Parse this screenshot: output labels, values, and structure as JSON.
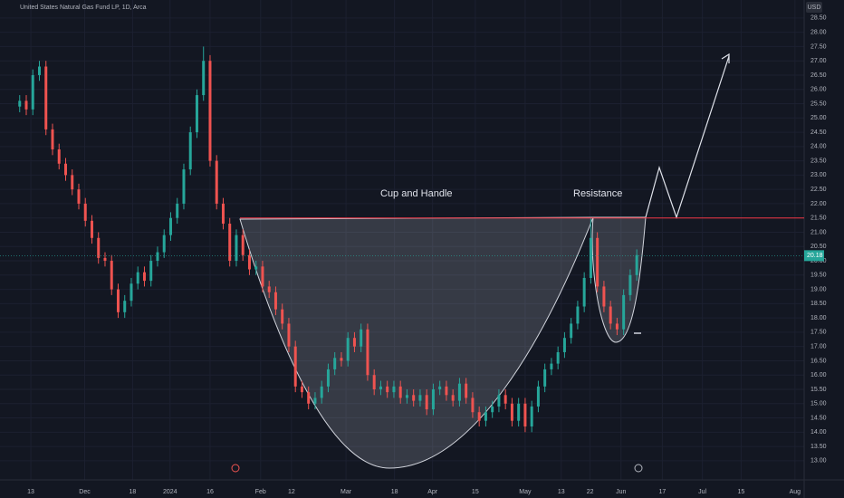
{
  "chart_data": {
    "type": "candlestick",
    "title": "United States Natural Gas Fund LP, 1D, Arca",
    "currency": "USD",
    "annotations": [
      "Cup and Handle",
      "Resistance"
    ],
    "up_color": "#26a69a",
    "down_color": "#ef5350",
    "resistance": 21.5,
    "resistance_color": "#f23645",
    "last_price": {
      "value": 20.18,
      "label": "20.18"
    },
    "grid": true,
    "xlim": [
      -3,
      119.5
    ],
    "ylim": [
      12.33,
      29.13
    ],
    "xticks": [
      {
        "value": 1.7,
        "label": "13"
      },
      {
        "value": 9.9,
        "label": "Dec"
      },
      {
        "value": 17.2,
        "label": "18"
      },
      {
        "value": 22.9,
        "label": "2024"
      },
      {
        "value": 29,
        "label": "16"
      },
      {
        "value": 36.7,
        "label": "Feb"
      },
      {
        "value": 41.4,
        "label": "12"
      },
      {
        "value": 49.7,
        "label": "Mar"
      },
      {
        "value": 57.1,
        "label": "18"
      },
      {
        "value": 62.9,
        "label": "Apr"
      },
      {
        "value": 69.4,
        "label": "15"
      },
      {
        "value": 77,
        "label": "May"
      },
      {
        "value": 82.5,
        "label": "13"
      },
      {
        "value": 86.9,
        "label": "22"
      },
      {
        "value": 91.6,
        "label": "Jun"
      },
      {
        "value": 97.9,
        "label": "17"
      },
      {
        "value": 104,
        "label": "Jul"
      },
      {
        "value": 109.9,
        "label": "15"
      },
      {
        "value": 118.1,
        "label": "Aug"
      }
    ],
    "yticks": [
      {
        "value": 13,
        "label": "13.00"
      },
      {
        "value": 13.5,
        "label": "13.50"
      },
      {
        "value": 14,
        "label": "14.00"
      },
      {
        "value": 14.5,
        "label": "14.50"
      },
      {
        "value": 15,
        "label": "15.00"
      },
      {
        "value": 15.5,
        "label": "15.50"
      },
      {
        "value": 16,
        "label": "16.00"
      },
      {
        "value": 16.5,
        "label": "16.50"
      },
      {
        "value": 17,
        "label": "17.00"
      },
      {
        "value": 17.5,
        "label": "17.50"
      },
      {
        "value": 18,
        "label": "18.00"
      },
      {
        "value": 18.5,
        "label": "18.50"
      },
      {
        "value": 19,
        "label": "19.00"
      },
      {
        "value": 19.5,
        "label": "19.50"
      },
      {
        "value": 20,
        "label": "20.00"
      },
      {
        "value": 20.5,
        "label": "20.50"
      },
      {
        "value": 21,
        "label": "21.00"
      },
      {
        "value": 21.5,
        "label": "21.50"
      },
      {
        "value": 22,
        "label": "22.00"
      },
      {
        "value": 22.5,
        "label": "22.50"
      },
      {
        "value": 23,
        "label": "23.00"
      },
      {
        "value": 23.5,
        "label": "23.50"
      },
      {
        "value": 24,
        "label": "24.00"
      },
      {
        "value": 24.5,
        "label": "24.50"
      },
      {
        "value": 25,
        "label": "25.00"
      },
      {
        "value": 25.5,
        "label": "25.50"
      },
      {
        "value": 26,
        "label": "26.00"
      },
      {
        "value": 26.5,
        "label": "26.50"
      },
      {
        "value": 27,
        "label": "27.00"
      },
      {
        "value": 27.5,
        "label": "27.50"
      },
      {
        "value": 28,
        "label": "28.00"
      },
      {
        "value": 28.5,
        "label": "28.50"
      }
    ],
    "open": [
      25.4,
      25.6,
      25.3,
      26.5,
      26.8,
      24.6,
      23.9,
      23.4,
      23.0,
      22.5,
      22.0,
      21.4,
      20.8,
      20.1,
      20.0,
      19.0,
      18.2,
      18.6,
      19.2,
      19.6,
      19.3,
      20.0,
      20.3,
      20.9,
      21.5,
      22.0,
      23.2,
      24.5,
      25.8,
      27.0,
      23.5,
      22.0,
      21.3,
      20.0,
      20.9,
      20.2,
      19.7,
      19.8,
      19.1,
      18.9,
      18.3,
      17.8,
      17.0,
      15.6,
      15.4,
      15.0,
      15.2,
      15.6,
      16.2,
      16.6,
      16.5,
      17.3,
      17.0,
      17.6,
      16.0,
      15.5,
      15.6,
      15.4,
      15.6,
      15.2,
      15.3,
      15.1,
      15.3,
      14.8,
      15.5,
      15.6,
      15.3,
      15.1,
      15.7,
      15.2,
      14.7,
      14.4,
      14.7,
      14.9,
      15.3,
      15.0,
      14.4,
      15.0,
      14.2,
      14.9,
      15.6,
      16.2,
      16.4,
      16.8,
      17.3,
      17.8,
      18.4,
      19.4,
      20.8,
      19.1,
      18.4,
      17.8,
      17.6,
      18.8,
      19.5
    ],
    "high": [
      25.8,
      25.8,
      26.7,
      27.0,
      27.0,
      24.8,
      24.1,
      23.6,
      23.2,
      22.7,
      22.2,
      21.6,
      21.0,
      20.3,
      20.2,
      19.2,
      18.8,
      19.4,
      19.8,
      19.8,
      20.2,
      20.5,
      21.1,
      21.7,
      22.2,
      23.4,
      24.7,
      26.0,
      27.5,
      27.2,
      23.7,
      22.2,
      21.5,
      21.1,
      21.1,
      20.4,
      20.0,
      20.0,
      19.3,
      19.1,
      18.5,
      18.0,
      17.2,
      15.8,
      15.6,
      15.4,
      15.8,
      16.4,
      16.8,
      16.8,
      17.5,
      17.5,
      17.8,
      17.8,
      16.2,
      15.8,
      15.8,
      15.8,
      15.8,
      15.5,
      15.5,
      15.5,
      15.5,
      15.7,
      15.8,
      15.8,
      15.5,
      15.9,
      15.9,
      15.4,
      14.9,
      14.9,
      15.1,
      15.5,
      15.5,
      15.2,
      15.2,
      15.2,
      15.1,
      15.8,
      16.4,
      16.6,
      17.0,
      17.5,
      18.0,
      18.6,
      19.6,
      21.5,
      21.0,
      19.3,
      18.6,
      18.0,
      19.0,
      19.7,
      20.4
    ],
    "low": [
      25.2,
      25.1,
      25.1,
      26.3,
      24.4,
      23.7,
      23.2,
      22.8,
      22.3,
      21.8,
      21.2,
      20.6,
      19.9,
      19.8,
      18.8,
      18.0,
      18.0,
      18.4,
      19.0,
      19.1,
      19.1,
      19.8,
      20.1,
      20.7,
      21.3,
      21.8,
      23.0,
      24.3,
      25.6,
      23.3,
      21.8,
      21.1,
      19.8,
      19.8,
      20.0,
      19.5,
      19.5,
      18.9,
      18.7,
      18.1,
      17.6,
      16.8,
      15.4,
      15.2,
      14.8,
      14.8,
      15.0,
      15.4,
      16.0,
      16.3,
      16.3,
      16.8,
      16.8,
      15.8,
      15.3,
      15.3,
      15.2,
      15.2,
      15.0,
      15.0,
      14.9,
      14.9,
      14.6,
      14.6,
      15.3,
      15.1,
      14.9,
      14.9,
      15.0,
      14.5,
      14.2,
      14.2,
      14.5,
      14.7,
      14.8,
      14.2,
      14.2,
      14.0,
      14.0,
      14.7,
      15.4,
      16.0,
      16.2,
      16.6,
      17.1,
      17.6,
      18.2,
      19.2,
      18.9,
      18.2,
      17.6,
      17.4,
      17.4,
      18.6,
      19.3
    ],
    "close": [
      25.6,
      25.3,
      26.5,
      26.8,
      24.6,
      23.9,
      23.4,
      23.0,
      22.5,
      22.0,
      21.4,
      20.8,
      20.1,
      20.0,
      19.0,
      18.2,
      18.6,
      19.2,
      19.6,
      19.3,
      20.0,
      20.3,
      20.9,
      21.5,
      22.0,
      23.2,
      24.5,
      25.8,
      27.0,
      23.5,
      22.0,
      21.3,
      20.0,
      20.9,
      20.2,
      19.7,
      19.8,
      19.1,
      18.9,
      18.3,
      17.8,
      17.0,
      15.6,
      15.4,
      15.0,
      15.2,
      15.6,
      16.2,
      16.6,
      16.5,
      17.3,
      17.0,
      17.6,
      16.0,
      15.5,
      15.6,
      15.4,
      15.6,
      15.2,
      15.3,
      15.1,
      15.3,
      14.8,
      15.5,
      15.6,
      15.3,
      15.1,
      15.7,
      15.2,
      14.7,
      14.4,
      14.7,
      14.9,
      15.3,
      15.0,
      14.4,
      15.0,
      14.2,
      14.9,
      15.6,
      16.2,
      16.4,
      16.8,
      17.3,
      17.8,
      18.4,
      19.4,
      20.8,
      19.1,
      18.4,
      17.8,
      17.6,
      18.8,
      19.5,
      20.2
    ]
  }
}
